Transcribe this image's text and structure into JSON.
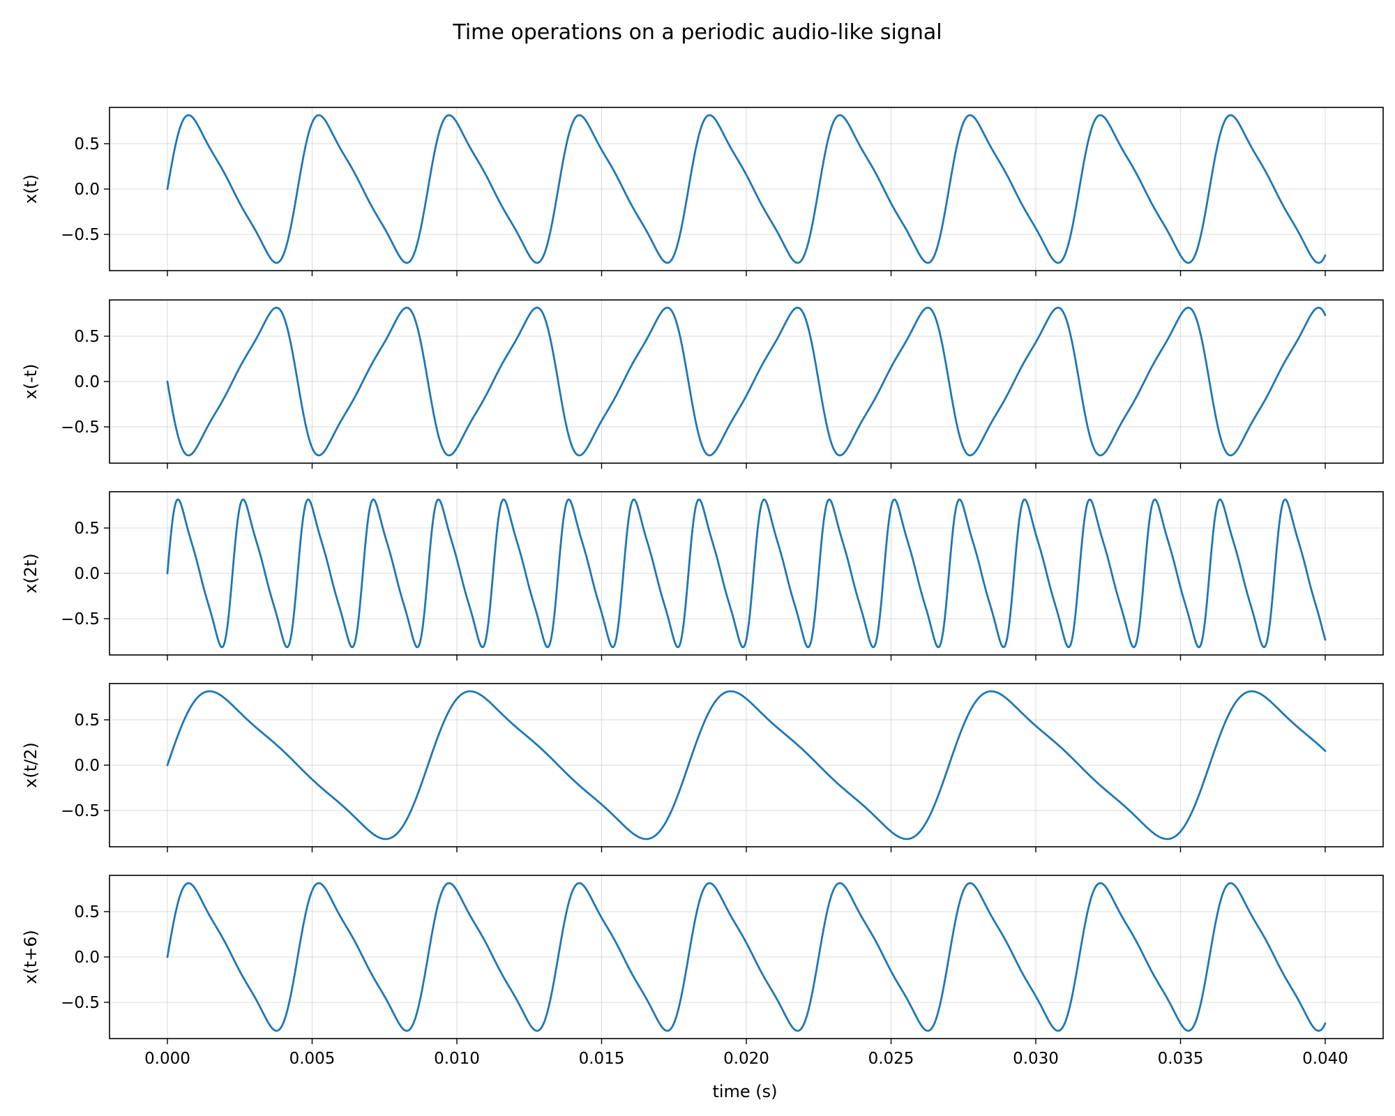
{
  "figure": {
    "title": "Time operations on a periodic audio-like signal"
  },
  "colors": {
    "line": "#1f77b4",
    "grid": "#b0b0b0"
  },
  "chart_data": [
    {
      "type": "line",
      "ylabel": "x(t)",
      "operation": "identity",
      "x_range": [
        0.0,
        0.04
      ],
      "ylim": [
        -0.9,
        0.9
      ],
      "yticks": [
        "0.5",
        "0.0",
        "−0.5"
      ],
      "ytick_values": [
        0.5,
        0.0,
        -0.5
      ],
      "grid": true
    },
    {
      "type": "line",
      "ylabel": "x(-t)",
      "operation": "time-reversal",
      "x_range": [
        0.0,
        0.04
      ],
      "ylim": [
        -0.9,
        0.9
      ],
      "yticks": [
        "0.5",
        "0.0",
        "−0.5"
      ],
      "ytick_values": [
        0.5,
        0.0,
        -0.5
      ],
      "grid": true
    },
    {
      "type": "line",
      "ylabel": "x(2t)",
      "operation": "compression by 2",
      "x_range": [
        0.0,
        0.04
      ],
      "ylim": [
        -0.9,
        0.9
      ],
      "yticks": [
        "0.5",
        "0.0",
        "−0.5"
      ],
      "ytick_values": [
        0.5,
        0.0,
        -0.5
      ],
      "grid": true
    },
    {
      "type": "line",
      "ylabel": "x(t/2)",
      "operation": "expansion by 2",
      "x_range": [
        0.0,
        0.04
      ],
      "ylim": [
        -0.9,
        0.9
      ],
      "yticks": [
        "0.5",
        "0.0",
        "−0.5"
      ],
      "ytick_values": [
        0.5,
        0.0,
        -0.5
      ],
      "grid": true
    },
    {
      "type": "line",
      "ylabel": "x(t+6)",
      "operation": "shift",
      "x_range": [
        0.0,
        0.04
      ],
      "ylim": [
        -0.9,
        0.9
      ],
      "yticks": [
        "0.5",
        "0.0",
        "−0.5"
      ],
      "ytick_values": [
        0.5,
        0.0,
        -0.5
      ],
      "grid": true
    }
  ],
  "shared_x": {
    "xlabel": "time (s)",
    "xlim": [
      -0.002,
      0.042
    ],
    "xticks": [
      "0.000",
      "0.005",
      "0.010",
      "0.015",
      "0.020",
      "0.025",
      "0.030",
      "0.035",
      "0.040"
    ],
    "xtick_values": [
      0.0,
      0.005,
      0.01,
      0.015,
      0.02,
      0.025,
      0.03,
      0.035,
      0.04
    ]
  }
}
